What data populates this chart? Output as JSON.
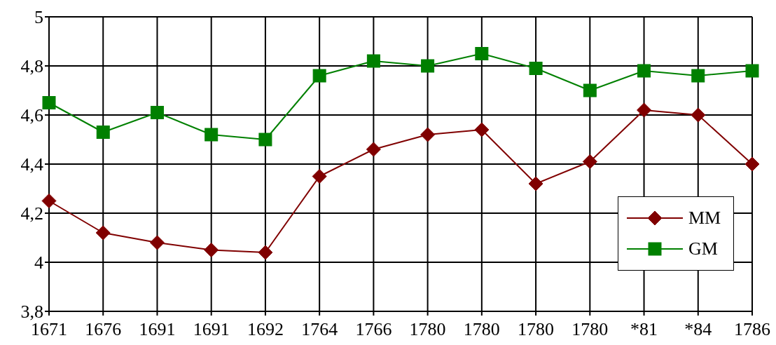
{
  "chart_data": {
    "type": "line",
    "categories": [
      "1671",
      "1676",
      "1691",
      "1691",
      "1692",
      "1764",
      "1766",
      "1780",
      "1780",
      "1780",
      "1780",
      "*81",
      "*84",
      "1786"
    ],
    "series": [
      {
        "name": "MM",
        "color": "#800000",
        "marker": "diamond",
        "values": [
          4.25,
          4.12,
          4.08,
          4.05,
          4.04,
          4.35,
          4.46,
          4.52,
          4.54,
          4.32,
          4.41,
          4.62,
          4.6,
          4.4
        ]
      },
      {
        "name": "GM",
        "color": "#008000",
        "marker": "square",
        "values": [
          4.65,
          4.53,
          4.61,
          4.52,
          4.5,
          4.76,
          4.82,
          4.8,
          4.85,
          4.79,
          4.7,
          4.78,
          4.76,
          4.78
        ]
      }
    ],
    "ylim": [
      3.8,
      5
    ],
    "yticks": [
      {
        "value": 3.8,
        "label": "3,8"
      },
      {
        "value": 4,
        "label": "4"
      },
      {
        "value": 4.2,
        "label": "4,2"
      },
      {
        "value": 4.4,
        "label": "4,4"
      },
      {
        "value": 4.6,
        "label": "4,6"
      },
      {
        "value": 4.8,
        "label": "4,8"
      },
      {
        "value": 5,
        "label": "5"
      }
    ],
    "grid": true,
    "legend": "right",
    "line_style": "solid"
  }
}
